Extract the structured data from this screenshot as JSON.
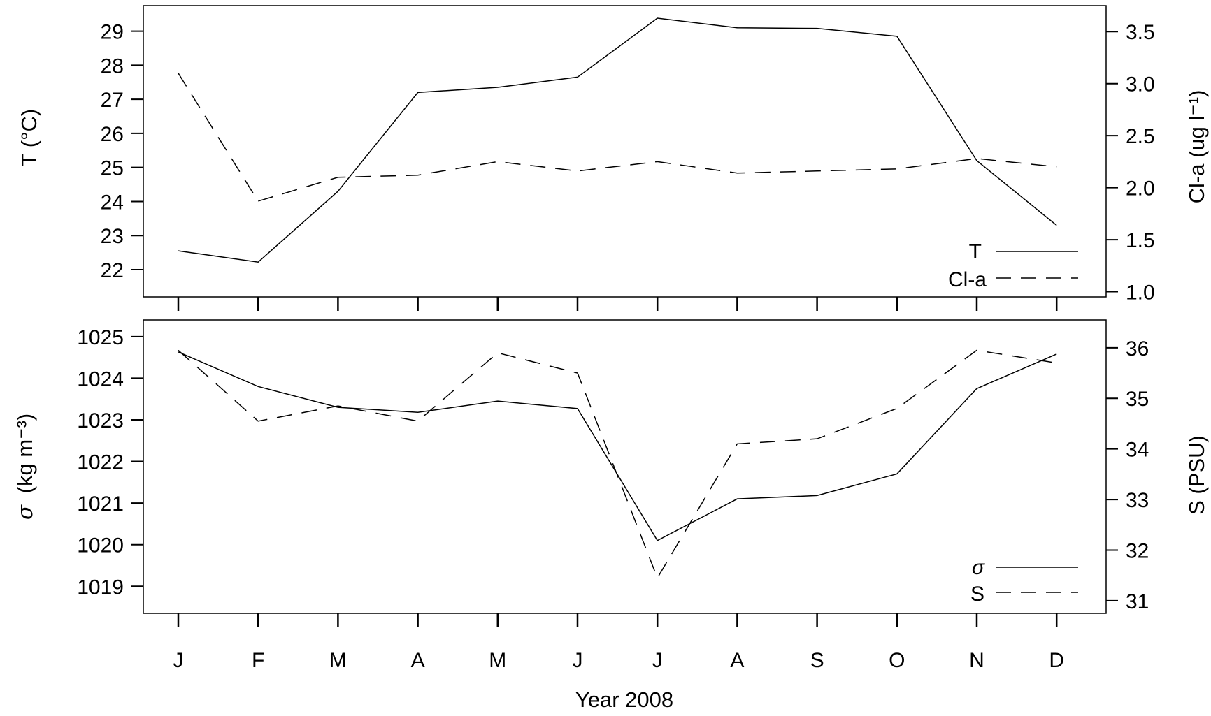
{
  "chart_data": [
    {
      "type": "line",
      "categories": [
        "J",
        "F",
        "M",
        "A",
        "M",
        "J",
        "J",
        "A",
        "S",
        "O",
        "N",
        "D"
      ],
      "series": [
        {
          "name": "T",
          "axis": "left",
          "style": "solid",
          "values": [
            22.55,
            22.22,
            24.3,
            27.2,
            27.35,
            27.65,
            29.38,
            29.1,
            29.08,
            28.85,
            25.2,
            23.3
          ]
        },
        {
          "name": "Cl-a",
          "axis": "right",
          "style": "dashed",
          "values": [
            3.1,
            1.87,
            2.1,
            2.12,
            2.25,
            2.16,
            2.25,
            2.14,
            2.16,
            2.18,
            2.28,
            2.2
          ]
        }
      ],
      "ylabel_left": "T (°C)",
      "ylabel_right": "Cl-a (ug l⁻¹)",
      "yticks_left": [
        "22",
        "23",
        "24",
        "25",
        "26",
        "27",
        "28",
        "29"
      ],
      "yticks_right": [
        "1.0",
        "1.5",
        "2.0",
        "2.5",
        "3.0",
        "3.5"
      ],
      "ylim_left": [
        21.2,
        29.75
      ],
      "ylim_right": [
        0.95,
        3.75
      ],
      "legend": "bottom-right"
    },
    {
      "type": "line",
      "categories": [
        "J",
        "F",
        "M",
        "A",
        "M",
        "J",
        "J",
        "A",
        "S",
        "O",
        "N",
        "D"
      ],
      "series": [
        {
          "name": "σ",
          "axis": "left",
          "style": "solid",
          "values": [
            1024.63,
            1023.8,
            1023.3,
            1023.18,
            1023.45,
            1023.27,
            1020.1,
            1021.1,
            1021.18,
            1021.7,
            1023.75,
            1024.58
          ]
        },
        {
          "name": "S",
          "axis": "right",
          "style": "dashed",
          "values": [
            35.95,
            34.55,
            34.85,
            34.55,
            35.9,
            35.5,
            31.45,
            34.1,
            34.2,
            34.8,
            35.95,
            35.7
          ]
        }
      ],
      "ylabel_left_symbol": "σ",
      "ylabel_left_units": "(kg m⁻³)",
      "ylabel_right": "S (PSU)",
      "yticks_left": [
        "1019",
        "1020",
        "1021",
        "1022",
        "1023",
        "1024",
        "1025"
      ],
      "yticks_right": [
        "31",
        "32",
        "33",
        "34",
        "35",
        "36"
      ],
      "ylim_left": [
        1018.35,
        1025.4
      ],
      "ylim_right": [
        30.75,
        36.55
      ],
      "xlabel": "Year 2008",
      "legend": "bottom-right"
    }
  ]
}
